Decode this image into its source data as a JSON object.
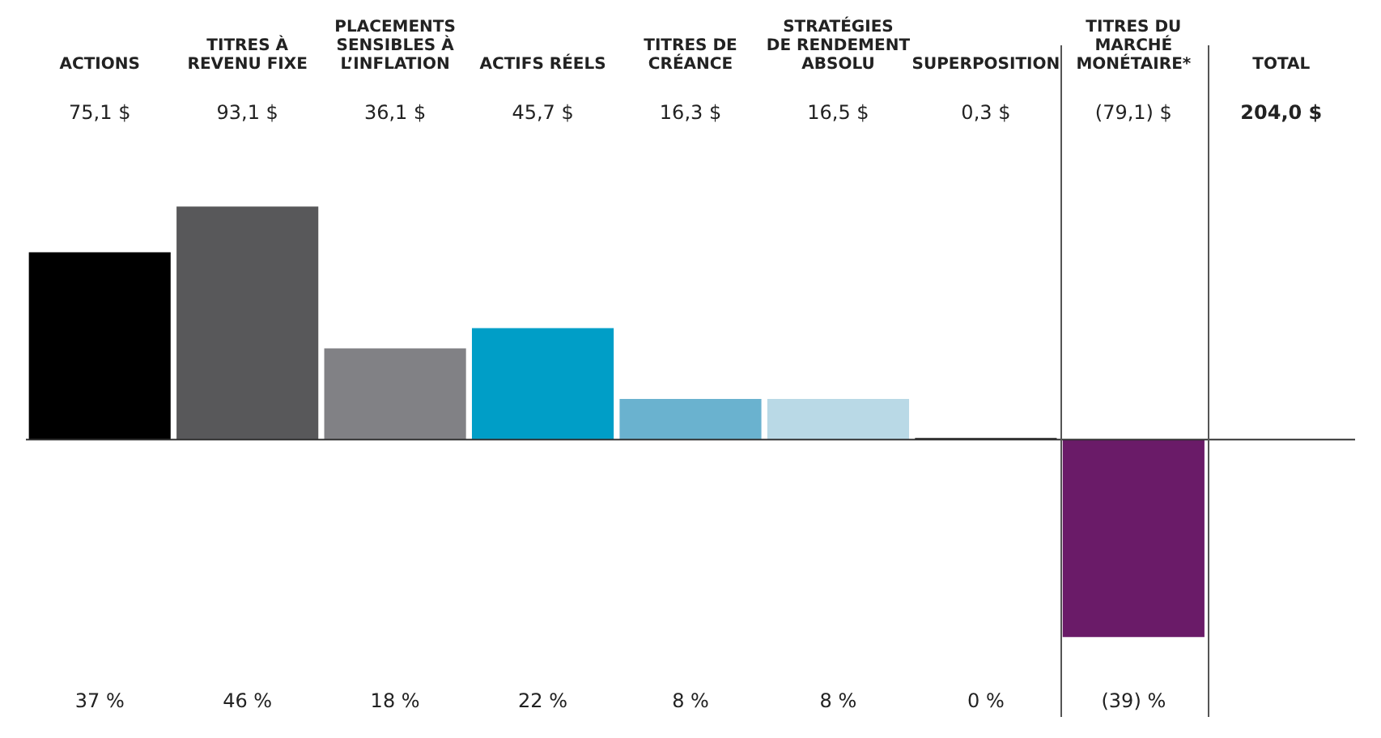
{
  "chart_data": {
    "type": "bar",
    "categories": [
      "ACTIONS",
      "TITRES À REVENU FIXE",
      "PLACEMENTS SENSIBLES À L’INFLATION",
      "ACTIFS RÉELS",
      "TITRES DE CRÉANCE",
      "STRATÉGIES DE RENDEMENT ABSOLU",
      "SUPERPOSITION",
      "TITRES DU MARCHÉ MONÉTAIRE*",
      "TOTAL"
    ],
    "values": [
      37,
      46,
      18,
      22,
      8,
      8,
      0.3,
      -39,
      null
    ],
    "colors": [
      "#000000",
      "#58585a",
      "#818185",
      "#009ec7",
      "#6ab2cf",
      "#b9d9e6",
      "#1a1a1a",
      "#6a1b68",
      "#ffffff"
    ],
    "value_labels": [
      "37 %",
      "46 %",
      "18 %",
      "22 %",
      "8 %",
      "8 %",
      "0 %",
      "(39) %",
      null
    ],
    "annotations": [
      "75,1 $",
      "93,1 $",
      "36,1 $",
      "45,7 $",
      "16,3 $",
      "16,5 $",
      "0,3 $",
      "(79,1) $",
      "204,0 $"
    ],
    "legend": false,
    "grid": false
  }
}
